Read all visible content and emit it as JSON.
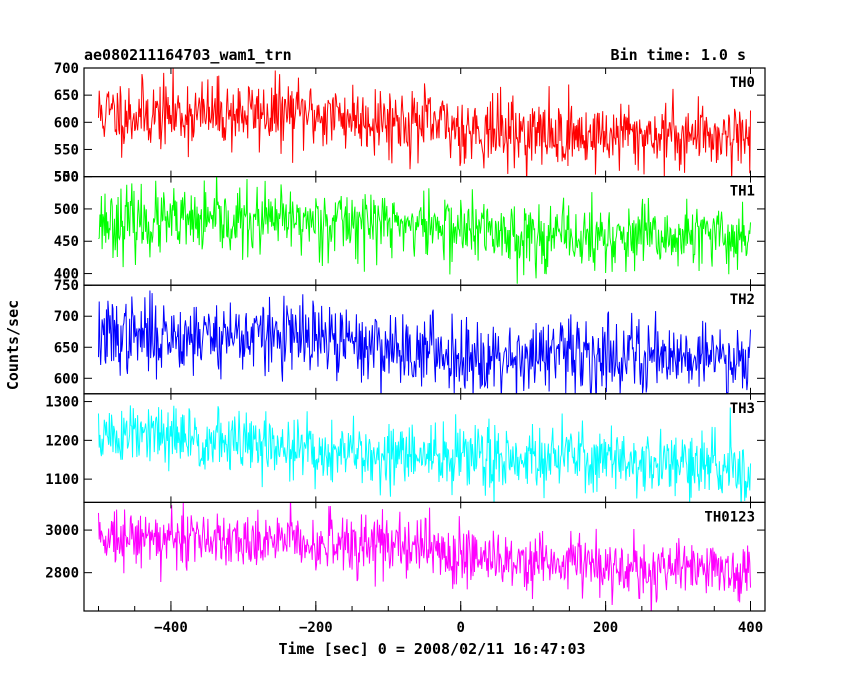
{
  "header": {
    "title": "ae080211164703_wam1_trn",
    "bin_time": "Bin time: 1.0 s"
  },
  "chart_data": {
    "type": "line",
    "xlabel": "Time [sec] 0 = 2008/02/11 16:47:03",
    "ylabel": "Counts/sec",
    "xlim": [
      -520,
      420
    ],
    "x_start": -500,
    "x_end": 400,
    "x_step": 1,
    "x_ticks": [
      -400,
      -200,
      0,
      200,
      400
    ],
    "x_tick_labels": [
      "−400",
      "−200",
      "0",
      "200",
      "400"
    ],
    "grid": false,
    "series": [
      {
        "name": "TH0",
        "color": "#ff0000",
        "ylim": [
          500,
          700
        ],
        "yticks": [
          500,
          550,
          600,
          650,
          700
        ],
        "mean_start": 625,
        "mean_end": 568,
        "spread": 32,
        "seed": 11
      },
      {
        "name": "TH1",
        "color": "#00ff00",
        "ylim": [
          382,
          550
        ],
        "yticks": [
          400,
          450,
          500,
          550
        ],
        "mean_start": 488,
        "mean_end": 452,
        "spread": 26,
        "seed": 23
      },
      {
        "name": "TH2",
        "color": "#0000ff",
        "ylim": [
          575,
          750
        ],
        "yticks": [
          600,
          650,
          700,
          750
        ],
        "mean_start": 672,
        "mean_end": 626,
        "spread": 30,
        "seed": 37
      },
      {
        "name": "TH3",
        "color": "#00ffff",
        "ylim": [
          1040,
          1320
        ],
        "yticks": [
          1100,
          1200,
          1300
        ],
        "mean_start": 1205,
        "mean_end": 1125,
        "spread": 42,
        "seed": 51
      },
      {
        "name": "TH0123",
        "color": "#ff00ff",
        "ylim": [
          2620,
          3130
        ],
        "yticks": [
          2800,
          3000
        ],
        "mean_start": 3000,
        "mean_end": 2800,
        "spread": 70,
        "seed": 73
      }
    ]
  }
}
